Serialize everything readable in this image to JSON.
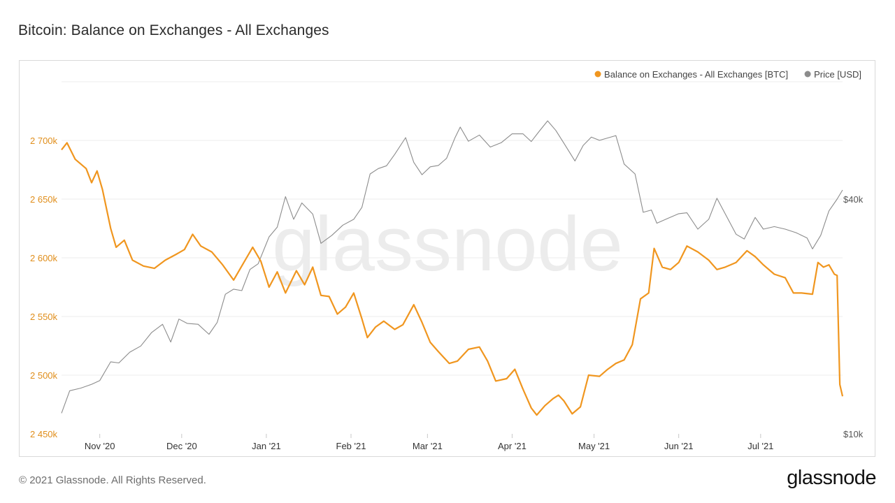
{
  "title": "Bitcoin: Balance on Exchanges - All Exchanges",
  "footer": "© 2021 Glassnode. All Rights Reserved.",
  "brand": "glassnode",
  "watermark": "glassnode",
  "colors": {
    "balance": "#f0961f",
    "price": "#8c8c8c",
    "grid": "#ececec"
  },
  "chart_data": {
    "type": "line",
    "x_range": [
      "2020-10-18",
      "2021-07-31"
    ],
    "x_ticks": [
      {
        "label": "Nov '20",
        "date": "2020-11-01"
      },
      {
        "label": "Dec '20",
        "date": "2020-12-01"
      },
      {
        "label": "Jan '21",
        "date": "2021-01-01"
      },
      {
        "label": "Feb '21",
        "date": "2021-02-01"
      },
      {
        "label": "Mar '21",
        "date": "2021-03-01"
      },
      {
        "label": "Apr '21",
        "date": "2021-04-01"
      },
      {
        "label": "May '21",
        "date": "2021-05-01"
      },
      {
        "label": "Jun '21",
        "date": "2021-06-01"
      },
      {
        "label": "Jul '21",
        "date": "2021-07-01"
      }
    ],
    "y_left": {
      "ylim": [
        2450000,
        2750000
      ],
      "ticks": [
        {
          "label": "2 450k",
          "value": 2450000
        },
        {
          "label": "2 500k",
          "value": 2500000
        },
        {
          "label": "2 550k",
          "value": 2550000
        },
        {
          "label": "2 600k",
          "value": 2600000
        },
        {
          "label": "2 650k",
          "value": 2650000
        },
        {
          "label": "2 700k",
          "value": 2700000
        }
      ]
    },
    "y_right": {
      "scale": "log",
      "ylim": [
        10000,
        80000
      ],
      "ticks": [
        {
          "label": "$10k",
          "value": 10000
        },
        {
          "label": "$40k",
          "value": 40000
        }
      ]
    },
    "legend_position": "top-right",
    "series": [
      {
        "name": "Balance on Exchanges - All Exchanges [BTC]",
        "axis": "left",
        "points": [
          [
            "2020-10-18",
            2692000
          ],
          [
            "2020-10-20",
            2698000
          ],
          [
            "2020-10-23",
            2684000
          ],
          [
            "2020-10-27",
            2676000
          ],
          [
            "2020-10-29",
            2664000
          ],
          [
            "2020-10-31",
            2674000
          ],
          [
            "2020-11-02",
            2658000
          ],
          [
            "2020-11-05",
            2625000
          ],
          [
            "2020-11-07",
            2609000
          ],
          [
            "2020-11-10",
            2615000
          ],
          [
            "2020-11-13",
            2598000
          ],
          [
            "2020-11-17",
            2593000
          ],
          [
            "2020-11-21",
            2591000
          ],
          [
            "2020-11-25",
            2598000
          ],
          [
            "2020-11-29",
            2603000
          ],
          [
            "2020-12-02",
            2607000
          ],
          [
            "2020-12-05",
            2620000
          ],
          [
            "2020-12-08",
            2610000
          ],
          [
            "2020-12-12",
            2605000
          ],
          [
            "2020-12-16",
            2594000
          ],
          [
            "2020-12-20",
            2581000
          ],
          [
            "2020-12-24",
            2597000
          ],
          [
            "2020-12-27",
            2609000
          ],
          [
            "2020-12-30",
            2597000
          ],
          [
            "2021-01-02",
            2575000
          ],
          [
            "2021-01-05",
            2588000
          ],
          [
            "2021-01-08",
            2570000
          ],
          [
            "2021-01-12",
            2589000
          ],
          [
            "2021-01-15",
            2577000
          ],
          [
            "2021-01-18",
            2592000
          ],
          [
            "2021-01-21",
            2568000
          ],
          [
            "2021-01-24",
            2567000
          ],
          [
            "2021-01-27",
            2552000
          ],
          [
            "2021-01-30",
            2558000
          ],
          [
            "2021-02-02",
            2570000
          ],
          [
            "2021-02-05",
            2548000
          ],
          [
            "2021-02-07",
            2532000
          ],
          [
            "2021-02-10",
            2541000
          ],
          [
            "2021-02-13",
            2546000
          ],
          [
            "2021-02-17",
            2539000
          ],
          [
            "2021-02-20",
            2543000
          ],
          [
            "2021-02-24",
            2560000
          ],
          [
            "2021-02-27",
            2545000
          ],
          [
            "2021-03-02",
            2528000
          ],
          [
            "2021-03-05",
            2520000
          ],
          [
            "2021-03-09",
            2510000
          ],
          [
            "2021-03-12",
            2512000
          ],
          [
            "2021-03-16",
            2522000
          ],
          [
            "2021-03-20",
            2524000
          ],
          [
            "2021-03-23",
            2512000
          ],
          [
            "2021-03-26",
            2495000
          ],
          [
            "2021-03-30",
            2497000
          ],
          [
            "2021-04-02",
            2505000
          ],
          [
            "2021-04-05",
            2488000
          ],
          [
            "2021-04-08",
            2472000
          ],
          [
            "2021-04-10",
            2466000
          ],
          [
            "2021-04-13",
            2474000
          ],
          [
            "2021-04-16",
            2480000
          ],
          [
            "2021-04-18",
            2483000
          ],
          [
            "2021-04-20",
            2478000
          ],
          [
            "2021-04-23",
            2467000
          ],
          [
            "2021-04-26",
            2473000
          ],
          [
            "2021-04-29",
            2500000
          ],
          [
            "2021-05-03",
            2499000
          ],
          [
            "2021-05-06",
            2505000
          ],
          [
            "2021-05-09",
            2510000
          ],
          [
            "2021-05-12",
            2513000
          ],
          [
            "2021-05-15",
            2526000
          ],
          [
            "2021-05-18",
            2565000
          ],
          [
            "2021-05-21",
            2570000
          ],
          [
            "2021-05-23",
            2608000
          ],
          [
            "2021-05-26",
            2592000
          ],
          [
            "2021-05-29",
            2590000
          ],
          [
            "2021-06-01",
            2596000
          ],
          [
            "2021-06-04",
            2610000
          ],
          [
            "2021-06-08",
            2605000
          ],
          [
            "2021-06-12",
            2598000
          ],
          [
            "2021-06-15",
            2590000
          ],
          [
            "2021-06-18",
            2592000
          ],
          [
            "2021-06-22",
            2596000
          ],
          [
            "2021-06-26",
            2606000
          ],
          [
            "2021-06-29",
            2601000
          ],
          [
            "2021-07-02",
            2594000
          ],
          [
            "2021-07-06",
            2586000
          ],
          [
            "2021-07-10",
            2583000
          ],
          [
            "2021-07-13",
            2570000
          ],
          [
            "2021-07-16",
            2570000
          ],
          [
            "2021-07-20",
            2569000
          ],
          [
            "2021-07-22",
            2596000
          ],
          [
            "2021-07-24",
            2592000
          ],
          [
            "2021-07-26",
            2594000
          ],
          [
            "2021-07-28",
            2586000
          ],
          [
            "2021-07-29",
            2585000
          ],
          [
            "2021-07-30",
            2492000
          ],
          [
            "2021-07-31",
            2482000
          ]
        ]
      },
      {
        "name": "Price [USD]",
        "axis": "right",
        "points": [
          [
            "2020-10-18",
            11300
          ],
          [
            "2020-10-21",
            12900
          ],
          [
            "2020-10-25",
            13100
          ],
          [
            "2020-10-29",
            13400
          ],
          [
            "2020-11-01",
            13700
          ],
          [
            "2020-11-05",
            15300
          ],
          [
            "2020-11-08",
            15200
          ],
          [
            "2020-11-12",
            16200
          ],
          [
            "2020-11-16",
            16800
          ],
          [
            "2020-11-20",
            18200
          ],
          [
            "2020-11-24",
            19100
          ],
          [
            "2020-11-27",
            17200
          ],
          [
            "2020-11-30",
            19700
          ],
          [
            "2020-12-03",
            19200
          ],
          [
            "2020-12-07",
            19100
          ],
          [
            "2020-12-11",
            18000
          ],
          [
            "2020-12-14",
            19300
          ],
          [
            "2020-12-17",
            22800
          ],
          [
            "2020-12-20",
            23500
          ],
          [
            "2020-12-23",
            23300
          ],
          [
            "2020-12-26",
            26400
          ],
          [
            "2020-12-29",
            27300
          ],
          [
            "2021-01-02",
            32000
          ],
          [
            "2021-01-05",
            33900
          ],
          [
            "2021-01-08",
            40600
          ],
          [
            "2021-01-11",
            35500
          ],
          [
            "2021-01-14",
            39100
          ],
          [
            "2021-01-18",
            36600
          ],
          [
            "2021-01-21",
            30800
          ],
          [
            "2021-01-25",
            32300
          ],
          [
            "2021-01-29",
            34300
          ],
          [
            "2021-02-02",
            35500
          ],
          [
            "2021-02-05",
            38100
          ],
          [
            "2021-02-08",
            46400
          ],
          [
            "2021-02-11",
            47900
          ],
          [
            "2021-02-14",
            48700
          ],
          [
            "2021-02-17",
            52100
          ],
          [
            "2021-02-21",
            57500
          ],
          [
            "2021-02-24",
            49700
          ],
          [
            "2021-02-27",
            46200
          ],
          [
            "2021-03-02",
            48400
          ],
          [
            "2021-03-05",
            48800
          ],
          [
            "2021-03-08",
            50900
          ],
          [
            "2021-03-11",
            57300
          ],
          [
            "2021-03-13",
            61200
          ],
          [
            "2021-03-16",
            56300
          ],
          [
            "2021-03-20",
            58400
          ],
          [
            "2021-03-24",
            54400
          ],
          [
            "2021-03-28",
            55800
          ],
          [
            "2021-04-01",
            58800
          ],
          [
            "2021-04-05",
            58800
          ],
          [
            "2021-04-08",
            56200
          ],
          [
            "2021-04-11",
            59800
          ],
          [
            "2021-04-14",
            63500
          ],
          [
            "2021-04-17",
            60000
          ],
          [
            "2021-04-20",
            55600
          ],
          [
            "2021-04-24",
            50100
          ],
          [
            "2021-04-27",
            54900
          ],
          [
            "2021-04-30",
            57700
          ],
          [
            "2021-05-03",
            56600
          ],
          [
            "2021-05-06",
            57400
          ],
          [
            "2021-05-09",
            58200
          ],
          [
            "2021-05-12",
            49200
          ],
          [
            "2021-05-16",
            46400
          ],
          [
            "2021-05-19",
            37000
          ],
          [
            "2021-05-22",
            37500
          ],
          [
            "2021-05-24",
            34700
          ],
          [
            "2021-05-28",
            35700
          ],
          [
            "2021-06-01",
            36700
          ],
          [
            "2021-06-04",
            36900
          ],
          [
            "2021-06-08",
            33500
          ],
          [
            "2021-06-12",
            35500
          ],
          [
            "2021-06-15",
            40200
          ],
          [
            "2021-06-19",
            35600
          ],
          [
            "2021-06-22",
            32500
          ],
          [
            "2021-06-25",
            31600
          ],
          [
            "2021-06-29",
            35900
          ],
          [
            "2021-07-02",
            33500
          ],
          [
            "2021-07-06",
            34000
          ],
          [
            "2021-07-10",
            33500
          ],
          [
            "2021-07-14",
            32800
          ],
          [
            "2021-07-18",
            31800
          ],
          [
            "2021-07-20",
            29800
          ],
          [
            "2021-07-23",
            32300
          ],
          [
            "2021-07-26",
            37300
          ],
          [
            "2021-07-29",
            40000
          ],
          [
            "2021-07-31",
            42200
          ]
        ]
      }
    ]
  }
}
